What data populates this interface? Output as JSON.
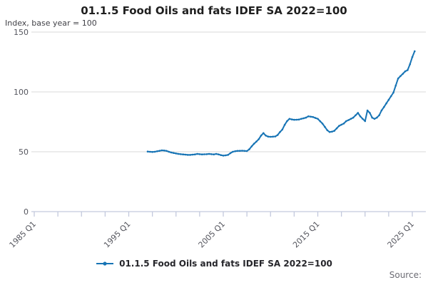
{
  "title": "01.1.5 Food Oils and fats IDEF SA 2022=100",
  "subtitle": "Index, base year = 100",
  "legend": {
    "label": "01.1.5 Food Oils and fats IDEF SA 2022=100"
  },
  "source_label": "Source:",
  "colors": {
    "line": "#1774b5",
    "grid": "#d9d9d9",
    "axis": "#c3c9dd",
    "tick_text": "#55565e",
    "title_text": "#1f1f1f",
    "source_text": "#6b6b73"
  },
  "chart_data": {
    "type": "line",
    "title": "01.1.5 Food Oils and fats IDEF SA 2022=100",
    "ylabel": "Index, base year = 100",
    "xlabel": "",
    "grid": "horizontal",
    "legend_position": "bottom",
    "marker": "point",
    "ylim": [
      0,
      150
    ],
    "y_ticks": [
      0,
      50,
      100,
      150
    ],
    "x_axis_years": [
      1985,
      2025
    ],
    "minor_tick_interval_years": 2.5,
    "x_tick_labels": [
      "1985 Q1",
      "1995 Q1",
      "2005 Q1",
      "2015 Q1",
      "2025 Q1"
    ],
    "x_tick_years": [
      1985,
      1995,
      2005,
      2015,
      2025
    ],
    "series": [
      {
        "name": "01.1.5 Food Oils and fats IDEF SA 2022=100",
        "start": "1997 Q1",
        "start_year_decimal": 1997.0,
        "frequency": "quarterly",
        "values": [
          50.2,
          50.0,
          49.8,
          50.0,
          50.4,
          50.8,
          51.2,
          51.0,
          50.7,
          50.0,
          49.4,
          49.0,
          48.6,
          48.2,
          48.0,
          47.8,
          47.6,
          47.4,
          47.4,
          47.6,
          47.8,
          48.2,
          48.0,
          47.8,
          47.9,
          48.0,
          48.2,
          48.0,
          47.8,
          48.2,
          47.8,
          47.2,
          46.8,
          47.0,
          47.4,
          48.8,
          50.0,
          50.4,
          50.7,
          50.8,
          50.9,
          50.7,
          50.6,
          52.0,
          54.5,
          56.7,
          58.5,
          60.5,
          63.5,
          65.6,
          63.5,
          62.7,
          62.5,
          62.6,
          62.8,
          64.0,
          66.5,
          68.6,
          72.5,
          75.6,
          77.5,
          77.0,
          76.7,
          76.8,
          76.9,
          77.5,
          78.0,
          78.5,
          79.6,
          79.3,
          79.0,
          78.2,
          77.5,
          75.5,
          73.5,
          70.8,
          68.0,
          66.5,
          66.8,
          67.5,
          69.5,
          71.6,
          72.6,
          73.6,
          75.6,
          76.5,
          77.5,
          78.5,
          80.5,
          82.5,
          79.6,
          77.5,
          75.6,
          84.5,
          82.5,
          78.5,
          77.5,
          78.5,
          80.5,
          84.5,
          87.4,
          90.4,
          93.4,
          96.4,
          99.4,
          105.3,
          111.2,
          113.2,
          115.2,
          117.2,
          118.2,
          123.1,
          129.1,
          134.0
        ]
      }
    ]
  }
}
